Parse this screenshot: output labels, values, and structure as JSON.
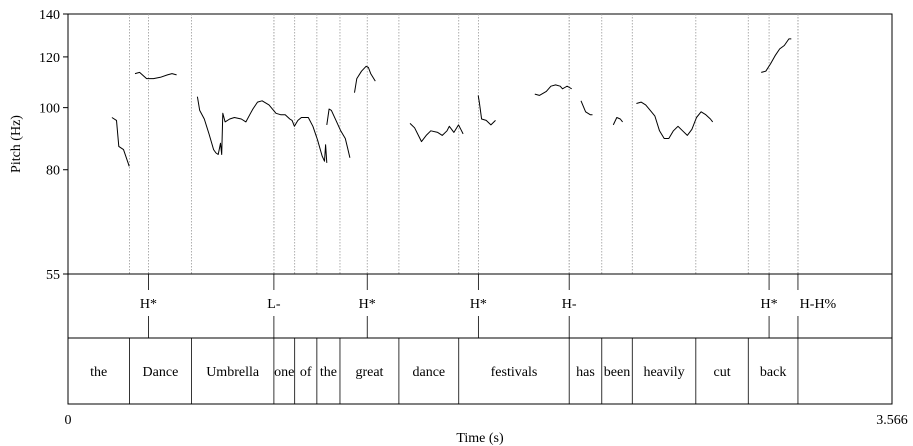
{
  "chart_data": {
    "type": "line",
    "xlabel": "Time (s)",
    "ylabel": "Pitch (Hz)",
    "xlim": [
      0,
      3.566
    ],
    "ylim": [
      55,
      140
    ],
    "x_tick_labels": [
      "0",
      "3.566"
    ],
    "y_ticks": [
      55,
      80,
      100,
      120,
      140
    ],
    "grid": false,
    "word_boundaries": [
      0.266,
      0.534,
      0.891,
      0.981,
      1.077,
      1.177,
      1.432,
      1.691,
      2.169,
      2.31,
      2.442,
      2.717,
      2.944,
      3.159
    ],
    "words": [
      {
        "label": "the",
        "start": 0.0,
        "end": 0.266
      },
      {
        "label": "Dance",
        "start": 0.266,
        "end": 0.534
      },
      {
        "label": "Umbrella",
        "start": 0.534,
        "end": 0.891
      },
      {
        "label": "one",
        "start": 0.891,
        "end": 0.981
      },
      {
        "label": "of",
        "start": 0.981,
        "end": 1.077
      },
      {
        "label": "the",
        "start": 1.077,
        "end": 1.177
      },
      {
        "label": "great",
        "start": 1.177,
        "end": 1.432
      },
      {
        "label": "dance",
        "start": 1.432,
        "end": 1.691
      },
      {
        "label": "festivals",
        "start": 1.691,
        "end": 2.169
      },
      {
        "label": "has",
        "start": 2.169,
        "end": 2.31
      },
      {
        "label": "been",
        "start": 2.31,
        "end": 2.442
      },
      {
        "label": "heavily",
        "start": 2.442,
        "end": 2.717
      },
      {
        "label": "cut",
        "start": 2.717,
        "end": 2.944
      },
      {
        "label": "back",
        "start": 2.944,
        "end": 3.159
      },
      {
        "label": "",
        "start": 3.159,
        "end": 3.566
      }
    ],
    "tones": [
      {
        "label": "H*",
        "time": 0.348
      },
      {
        "label": "L-",
        "time": 0.891
      },
      {
        "label": "H*",
        "time": 1.295
      },
      {
        "label": "H*",
        "time": 1.776
      },
      {
        "label": "H-",
        "time": 2.169
      },
      {
        "label": "H*",
        "time": 3.034
      },
      {
        "label": "H-H%",
        "time": 3.159
      }
    ],
    "pitch_segments": [
      [
        [
          0.19,
          96.5
        ],
        [
          0.21,
          95.5
        ],
        [
          0.22,
          87
        ],
        [
          0.24,
          86
        ],
        [
          0.26,
          82
        ],
        [
          0.265,
          81
        ]
      ],
      [
        [
          0.29,
          113
        ],
        [
          0.31,
          113.5
        ],
        [
          0.34,
          111
        ],
        [
          0.37,
          111
        ],
        [
          0.4,
          111.5
        ],
        [
          0.43,
          112.5
        ],
        [
          0.45,
          113
        ],
        [
          0.47,
          112.5
        ]
      ],
      [
        [
          0.56,
          104
        ],
        [
          0.57,
          99
        ],
        [
          0.59,
          96
        ],
        [
          0.61,
          91
        ],
        [
          0.63,
          86
        ],
        [
          0.64,
          85
        ],
        [
          0.65,
          84.5
        ],
        [
          0.66,
          88
        ],
        [
          0.665,
          84.5
        ],
        [
          0.67,
          98
        ],
        [
          0.68,
          95
        ],
        [
          0.7,
          96
        ],
        [
          0.72,
          96.5
        ],
        [
          0.75,
          96
        ],
        [
          0.77,
          95
        ],
        [
          0.79,
          98
        ],
        [
          0.8,
          99.5
        ],
        [
          0.82,
          102
        ],
        [
          0.84,
          102.5
        ],
        [
          0.87,
          101
        ],
        [
          0.9,
          98
        ],
        [
          0.92,
          97.5
        ],
        [
          0.94,
          97.5
        ],
        [
          0.96,
          96
        ],
        [
          0.97,
          95.5
        ],
        [
          0.98,
          93.5
        ],
        [
          0.995,
          95.5
        ],
        [
          1.01,
          96.5
        ],
        [
          1.04,
          96.5
        ],
        [
          1.06,
          93.5
        ],
        [
          1.08,
          89
        ],
        [
          1.1,
          84
        ],
        [
          1.11,
          82.5
        ],
        [
          1.115,
          87.5
        ],
        [
          1.12,
          82
        ]
      ],
      [
        [
          1.12,
          94
        ],
        [
          1.13,
          99.5
        ],
        [
          1.14,
          99
        ],
        [
          1.16,
          95.5
        ],
        [
          1.18,
          92
        ],
        [
          1.2,
          89.5
        ],
        [
          1.21,
          86.5
        ],
        [
          1.22,
          83.5
        ]
      ],
      [
        [
          1.24,
          105.5
        ],
        [
          1.25,
          111
        ],
        [
          1.27,
          114
        ],
        [
          1.29,
          116
        ],
        [
          1.3,
          115.5
        ],
        [
          1.31,
          113
        ],
        [
          1.33,
          110
        ]
      ],
      [
        [
          1.48,
          94.5
        ],
        [
          1.5,
          93
        ],
        [
          1.52,
          90
        ],
        [
          1.53,
          88.5
        ],
        [
          1.55,
          90.5
        ],
        [
          1.57,
          92
        ],
        [
          1.6,
          91.5
        ],
        [
          1.62,
          90.5
        ],
        [
          1.64,
          92
        ],
        [
          1.65,
          93.5
        ],
        [
          1.66,
          92.5
        ],
        [
          1.67,
          91.5
        ],
        [
          1.69,
          94
        ],
        [
          1.7,
          92.5
        ],
        [
          1.71,
          91
        ]
      ],
      [
        [
          1.775,
          104.5
        ],
        [
          1.78,
          102
        ],
        [
          1.79,
          96
        ],
        [
          1.81,
          95.5
        ],
        [
          1.83,
          94
        ],
        [
          1.85,
          95.5
        ]
      ],
      [
        [
          2.02,
          105
        ],
        [
          2.04,
          104.5
        ],
        [
          2.07,
          106
        ],
        [
          2.09,
          108
        ],
        [
          2.11,
          108.5
        ],
        [
          2.13,
          108
        ],
        [
          2.14,
          107
        ],
        [
          2.15,
          107.5
        ],
        [
          2.16,
          108
        ],
        [
          2.17,
          107.5
        ],
        [
          2.18,
          107
        ]
      ],
      [
        [
          2.22,
          102.5
        ],
        [
          2.24,
          98.5
        ],
        [
          2.26,
          97.5
        ],
        [
          2.27,
          97.5
        ]
      ],
      [
        [
          2.36,
          94
        ],
        [
          2.375,
          96.5
        ],
        [
          2.39,
          96
        ],
        [
          2.4,
          95
        ]
      ],
      [
        [
          2.46,
          101.5
        ],
        [
          2.48,
          102
        ],
        [
          2.5,
          101
        ],
        [
          2.52,
          99
        ],
        [
          2.54,
          97
        ],
        [
          2.56,
          92
        ],
        [
          2.58,
          89.5
        ],
        [
          2.6,
          89.5
        ],
        [
          2.62,
          92
        ],
        [
          2.64,
          93.5
        ],
        [
          2.66,
          92
        ],
        [
          2.68,
          90.5
        ],
        [
          2.7,
          92.5
        ],
        [
          2.72,
          96.5
        ],
        [
          2.74,
          98.5
        ],
        [
          2.76,
          97.5
        ],
        [
          2.78,
          96
        ],
        [
          2.79,
          95
        ]
      ],
      [
        [
          3.0,
          113.5
        ],
        [
          3.02,
          114
        ],
        [
          3.04,
          117
        ],
        [
          3.06,
          120.5
        ],
        [
          3.08,
          123.5
        ],
        [
          3.1,
          125
        ],
        [
          3.12,
          128
        ],
        [
          3.13,
          128
        ]
      ]
    ]
  }
}
